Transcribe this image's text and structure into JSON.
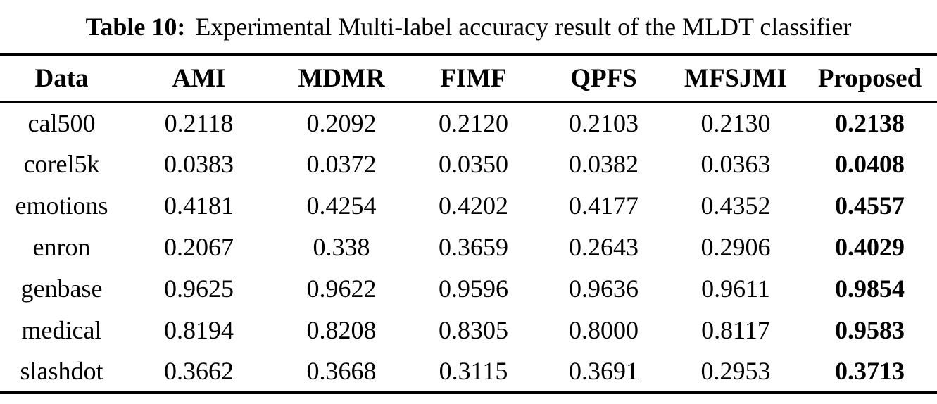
{
  "caption": {
    "label": "Table 10:",
    "text": "Experimental Multi-label accuracy result of the MLDT classifier"
  },
  "table": {
    "columns": [
      "Data",
      "AMI",
      "MDMR",
      "FIMF",
      "QPFS",
      "MFSJMI",
      "Proposed"
    ],
    "rows": [
      {
        "name": "cal500",
        "values": [
          "0.2118",
          "0.2092",
          "0.2120",
          "0.2103",
          "0.2130",
          "0.2138"
        ]
      },
      {
        "name": "corel5k",
        "values": [
          "0.0383",
          "0.0372",
          "0.0350",
          "0.0382",
          "0.0363",
          "0.0408"
        ]
      },
      {
        "name": "emotions",
        "values": [
          "0.4181",
          "0.4254",
          "0.4202",
          "0.4177",
          "0.4352",
          "0.4557"
        ]
      },
      {
        "name": "enron",
        "values": [
          "0.2067",
          "0.338",
          "0.3659",
          "0.2643",
          "0.2906",
          "0.4029"
        ]
      },
      {
        "name": "genbase",
        "values": [
          "0.9625",
          "0.9622",
          "0.9596",
          "0.9636",
          "0.9611",
          "0.9854"
        ]
      },
      {
        "name": "medical",
        "values": [
          "0.8194",
          "0.8208",
          "0.8305",
          "0.8000",
          "0.8117",
          "0.9583"
        ]
      },
      {
        "name": "slashdot",
        "values": [
          "0.3662",
          "0.3668",
          "0.3115",
          "0.3691",
          "0.2953",
          "0.3713"
        ]
      }
    ]
  }
}
